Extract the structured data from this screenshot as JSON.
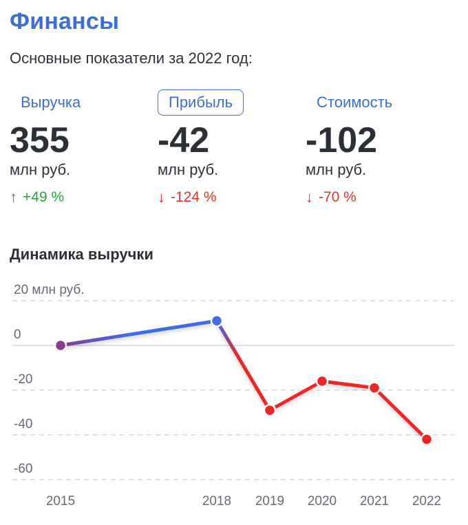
{
  "header": {
    "title": "Финансы",
    "subtitle": "Основные показатели за 2022 год:"
  },
  "metrics": [
    {
      "label": "Выручка",
      "value": "355",
      "unit": "млн руб.",
      "change": "+49 %",
      "direction": "up",
      "active": false
    },
    {
      "label": "Прибыль",
      "value": "-42",
      "unit": "млн руб.",
      "change": "-124 %",
      "direction": "down",
      "active": true
    },
    {
      "label": "Стоимость",
      "value": "-102",
      "unit": "млн руб.",
      "change": "-70 %",
      "direction": "down",
      "active": false
    }
  ],
  "section_title": "Динамика выручки",
  "colors": {
    "accent": "#3c6fd6",
    "up": "#22a83a",
    "down": "#e53128",
    "line_positive": "#3e6ee8",
    "line_negative": "#ee2525"
  },
  "chart_data": {
    "type": "line",
    "title": "Динамика выручки",
    "ylabel": "20 млн руб.",
    "x": [
      "2015",
      "2018",
      "2019",
      "2020",
      "2021",
      "2022"
    ],
    "series": [
      {
        "values": [
          0,
          11,
          -29,
          -16,
          -19,
          -42
        ]
      }
    ],
    "y_ticks": [
      "20 млн руб.",
      "0",
      "-20",
      "-40",
      "-60"
    ],
    "ylim": [
      -60,
      20
    ],
    "grid": true
  }
}
